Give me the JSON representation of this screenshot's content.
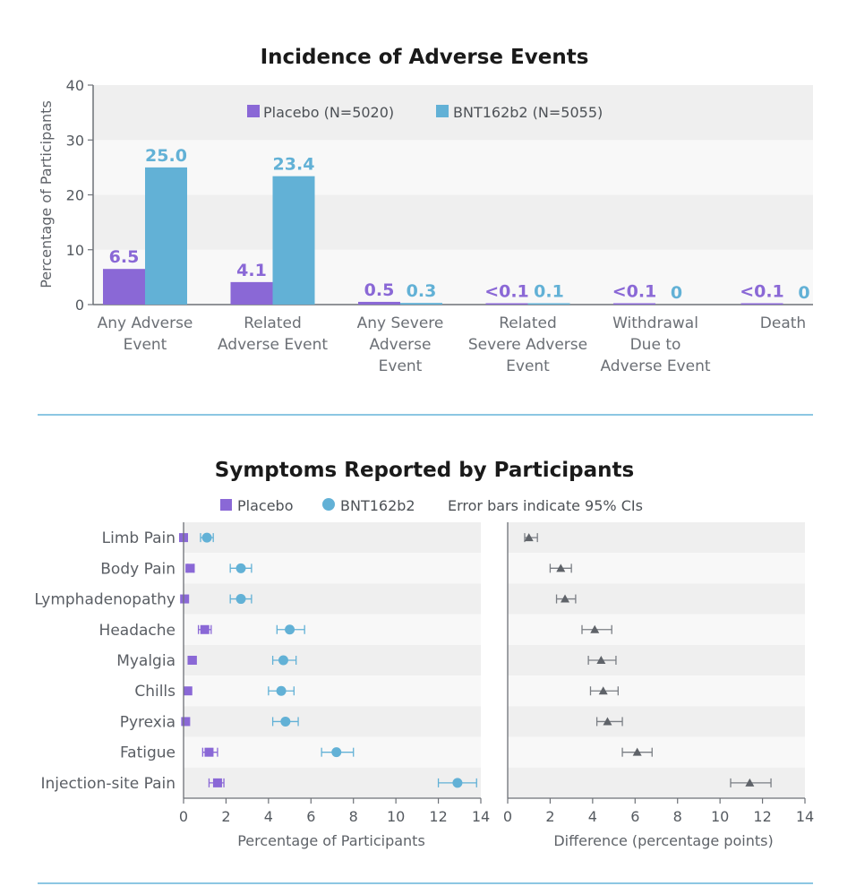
{
  "chart_data": [
    {
      "type": "bar",
      "title": "Incidence of Adverse Events",
      "ylabel": "Percentage of Participants",
      "xlabel": "",
      "ylim": [
        0,
        40
      ],
      "yticks": [
        "0",
        "10",
        "20",
        "30",
        "40"
      ],
      "categories": [
        [
          "Any Adverse",
          "Event"
        ],
        [
          "Related",
          "Adverse Event"
        ],
        [
          "Any Severe",
          "Adverse",
          "Event"
        ],
        [
          "Related",
          "Severe Adverse",
          "Event"
        ],
        [
          "Withdrawal",
          "Due to",
          "Adverse Event"
        ],
        [
          "Death"
        ]
      ],
      "legend": [
        "Placebo (N=5020)",
        "BNT162b2 (N=5055)"
      ],
      "series": [
        {
          "name": "Placebo (N=5020)",
          "color": "#8a68d6",
          "values": [
            6.5,
            4.1,
            0.5,
            0.05,
            0.05,
            0.05
          ],
          "labels": [
            "6.5",
            "4.1",
            "0.5",
            "<0.1",
            "<0.1",
            "<0.1"
          ]
        },
        {
          "name": "BNT162b2 (N=5055)",
          "color": "#62b1d6",
          "values": [
            25.0,
            23.4,
            0.3,
            0.1,
            0,
            0
          ],
          "labels": [
            "25.0",
            "23.4",
            "0.3",
            "0.1",
            "0",
            "0"
          ]
        }
      ]
    },
    {
      "type": "scatter",
      "title": "Symptoms Reported by Participants",
      "legend": [
        "Placebo",
        "BNT162b2",
        "Error bars indicate 95% CIs"
      ],
      "categories": [
        "Limb Pain",
        "Body Pain",
        "Lymphadenopathy",
        "Headache",
        "Myalgia",
        "Chills",
        "Pyrexia",
        "Fatigue",
        "Injection-site Pain"
      ],
      "left_panel": {
        "xlabel": "Percentage of Participants",
        "xlim": [
          0,
          14
        ],
        "xticks": [
          "0",
          "2",
          "4",
          "6",
          "8",
          "10",
          "12",
          "14"
        ],
        "placebo": [
          {
            "value": 0.0,
            "lo": 0.0,
            "hi": 0.1
          },
          {
            "value": 0.3,
            "lo": 0.2,
            "hi": 0.5
          },
          {
            "value": 0.05,
            "lo": 0.0,
            "hi": 0.15
          },
          {
            "value": 1.0,
            "lo": 0.7,
            "hi": 1.3
          },
          {
            "value": 0.4,
            "lo": 0.25,
            "hi": 0.6
          },
          {
            "value": 0.2,
            "lo": 0.1,
            "hi": 0.35
          },
          {
            "value": 0.1,
            "lo": 0.05,
            "hi": 0.25
          },
          {
            "value": 1.2,
            "lo": 0.9,
            "hi": 1.6
          },
          {
            "value": 1.6,
            "lo": 1.2,
            "hi": 1.9
          }
        ],
        "bnt162b2": [
          {
            "value": 1.1,
            "lo": 0.8,
            "hi": 1.4
          },
          {
            "value": 2.7,
            "lo": 2.2,
            "hi": 3.2
          },
          {
            "value": 2.7,
            "lo": 2.2,
            "hi": 3.2
          },
          {
            "value": 5.0,
            "lo": 4.4,
            "hi": 5.7
          },
          {
            "value": 4.7,
            "lo": 4.2,
            "hi": 5.3
          },
          {
            "value": 4.6,
            "lo": 4.0,
            "hi": 5.2
          },
          {
            "value": 4.8,
            "lo": 4.2,
            "hi": 5.4
          },
          {
            "value": 7.2,
            "lo": 6.5,
            "hi": 8.0
          },
          {
            "value": 12.9,
            "lo": 12.0,
            "hi": 13.8
          }
        ]
      },
      "right_panel": {
        "xlabel": "Difference (percentage points)",
        "xlim": [
          0,
          14
        ],
        "xticks": [
          "0",
          "2",
          "4",
          "6",
          "8",
          "10",
          "12",
          "14"
        ],
        "difference": [
          {
            "value": 1.0,
            "lo": 0.8,
            "hi": 1.4
          },
          {
            "value": 2.5,
            "lo": 2.0,
            "hi": 3.0
          },
          {
            "value": 2.7,
            "lo": 2.3,
            "hi": 3.2
          },
          {
            "value": 4.1,
            "lo": 3.5,
            "hi": 4.9
          },
          {
            "value": 4.4,
            "lo": 3.8,
            "hi": 5.1
          },
          {
            "value": 4.5,
            "lo": 3.9,
            "hi": 5.2
          },
          {
            "value": 4.7,
            "lo": 4.2,
            "hi": 5.4
          },
          {
            "value": 6.1,
            "lo": 5.4,
            "hi": 6.8
          },
          {
            "value": 11.4,
            "lo": 10.5,
            "hi": 12.4
          }
        ]
      }
    }
  ]
}
